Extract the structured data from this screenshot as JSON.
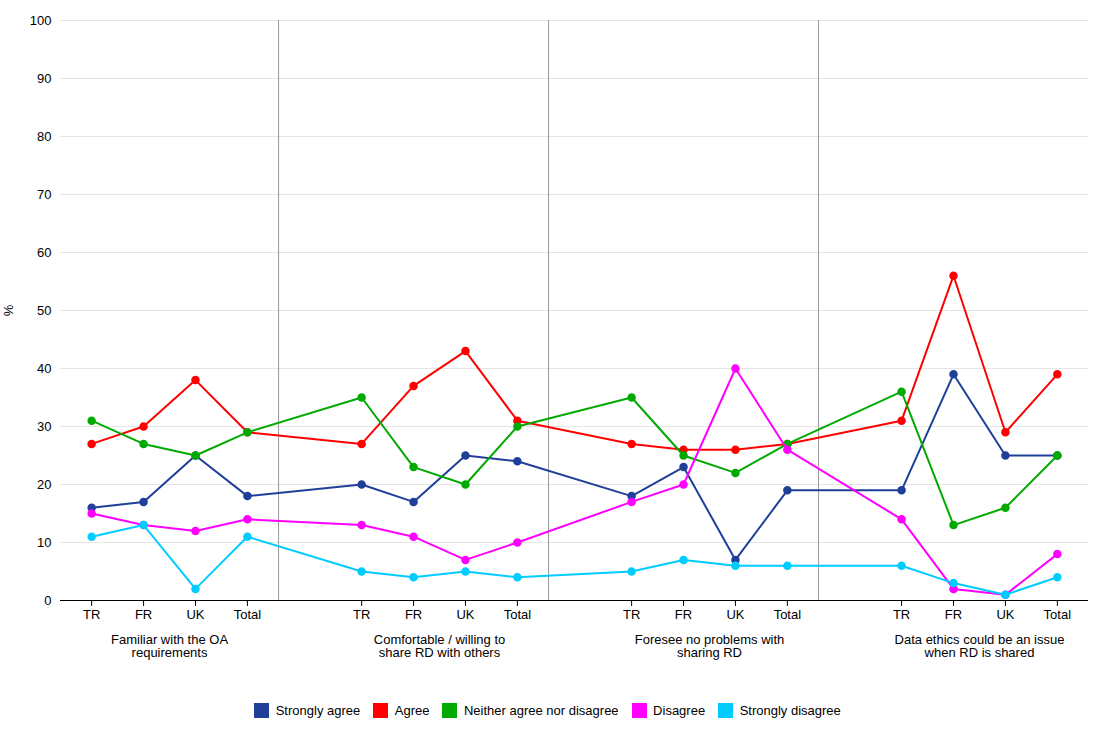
{
  "chart_data": {
    "type": "line",
    "ylabel": "%",
    "categories": [
      "TR",
      "FR",
      "UK",
      "Total",
      "TR",
      "FR",
      "UK",
      "Total",
      "TR",
      "FR",
      "UK",
      "Total",
      "TR",
      "FR",
      "UK",
      "Total"
    ],
    "groups": [
      "Familiar with the OA\nrequirements",
      "Comfortable / willing to\nshare RD with others",
      "Foresee no problems with\nsharing RD",
      "Data ethics could be an issue\nwhen RD is shared"
    ],
    "series": [
      {
        "name": "Strongly agree",
        "color": "#1f3f99",
        "values": [
          16,
          17,
          25,
          18,
          20,
          17,
          25,
          24,
          18,
          23,
          7,
          19,
          19,
          39,
          25,
          25
        ]
      },
      {
        "name": "Agree",
        "color": "#ff0000",
        "values": [
          27,
          30,
          38,
          29,
          27,
          37,
          43,
          31,
          27,
          26,
          26,
          27,
          31,
          56,
          29,
          39
        ]
      },
      {
        "name": "Neither agree nor disagree",
        "color": "#00aa00",
        "values": [
          31,
          27,
          25,
          29,
          35,
          23,
          20,
          30,
          35,
          25,
          22,
          27,
          36,
          13,
          16,
          25
        ]
      },
      {
        "name": "Disagree",
        "color": "#ff00ff",
        "values": [
          15,
          13,
          12,
          14,
          13,
          11,
          7,
          10,
          17,
          20,
          40,
          26,
          14,
          2,
          1,
          8
        ]
      },
      {
        "name": "Strongly disagree",
        "color": "#00ccff",
        "values": [
          11,
          13,
          2,
          11,
          5,
          4,
          5,
          4,
          5,
          7,
          6,
          6,
          6,
          3,
          1,
          4
        ]
      }
    ],
    "ylim": [
      0,
      100
    ],
    "yticks": [
      0,
      10,
      20,
      30,
      40,
      50,
      60,
      70,
      80,
      90,
      100
    ],
    "grid": true,
    "marker": "circle",
    "legend": "bottom"
  }
}
